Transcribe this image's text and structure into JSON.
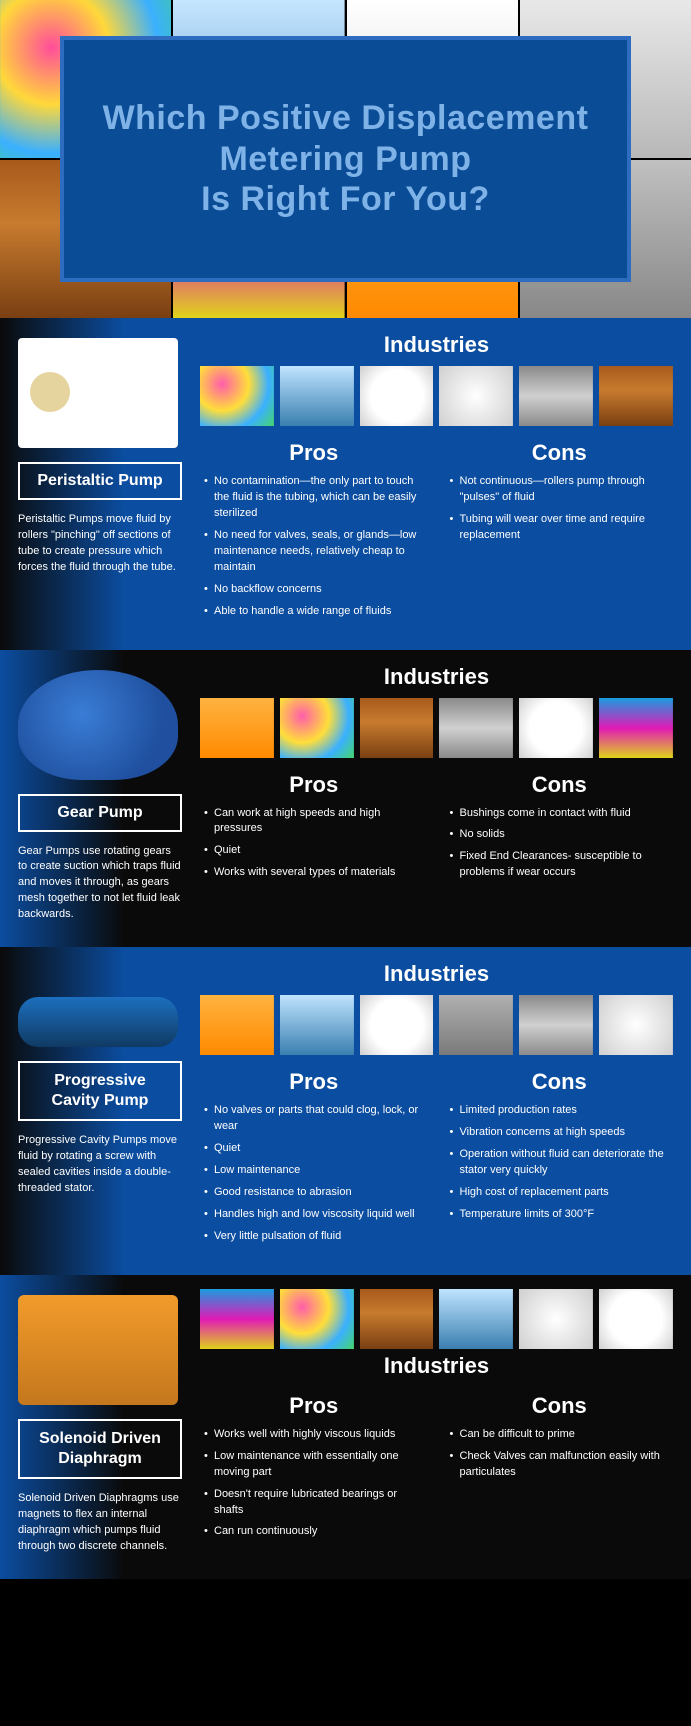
{
  "title_line1": "Which Positive Displacement",
  "title_line2": "Metering Pump",
  "title_line3": "Is Right For You?",
  "title_color": "#7fb3e8",
  "title_fontsize": 34,
  "box_border_color": "#2e6cbf",
  "box_bg_color": "#0a4d96",
  "labels": {
    "industries": "Industries",
    "pros": "Pros",
    "cons": "Cons"
  },
  "colors": {
    "blue_bg": "#0b4da0",
    "black_bg": "#0a0a0a",
    "text": "#ffffff"
  },
  "sections": [
    {
      "name": "Peristaltic Pump",
      "desc": "Peristaltic Pumps move fluid by rollers \"pinching\" off sections of tube to create pressure which forces the fluid through the tube.",
      "industries": [
        "paints",
        "water",
        "paper",
        "plastic",
        "metal",
        "bottles"
      ],
      "pros": [
        "No contamination—the only part to touch the fluid is the tubing, which can  be easily sterilized",
        "No need for valves, seals, or glands—low maintenance needs, relatively cheap to maintain",
        "No backflow concerns",
        "Able to handle a wide range of fluids"
      ],
      "cons": [
        "Not continuous—rollers pump through \"pulses\" of fluid",
        "Tubing will wear over time and require replacement"
      ]
    },
    {
      "name": "Gear Pump",
      "desc": "Gear Pumps use rotating gears to create suction which traps fluid and moves it through, as gears mesh together to not let fluid leak backwards.",
      "industries": [
        "orange",
        "paints",
        "bottles",
        "metal",
        "paper",
        "chem"
      ],
      "pros": [
        "Can work at high speeds and high pressures",
        "Quiet",
        "Works with several types of materials"
      ],
      "cons": [
        "Bushings come in contact with fluid",
        "No solids",
        "Fixed End Clearances- susceptible to problems if wear occurs"
      ]
    },
    {
      "name": "Progressive Cavity Pump",
      "desc": "Progressive Cavity Pumps move fluid by rotating a screw with sealed cavities inside a double-threaded stator.",
      "industries": [
        "orange",
        "water",
        "paper",
        "towers",
        "metal",
        "plastic"
      ],
      "pros": [
        "No valves or parts that could clog, lock, or wear",
        "Quiet",
        "Low maintenance",
        "Good resistance to abrasion",
        "Handles high and low viscosity liquid well",
        "Very little pulsation of fluid"
      ],
      "cons": [
        "Limited production rates",
        "Vibration concerns at high speeds",
        "Operation without fluid can deteriorate the stator very quickly",
        "High cost of replacement parts",
        "Temperature limits of 300°F"
      ]
    },
    {
      "name": "Solenoid Driven Diaphragm",
      "desc": "Solenoid Driven Diaphragms use magnets to flex an internal diaphragm which pumps fluid through two discrete channels.",
      "industries": [
        "chem",
        "paints",
        "bottles",
        "water",
        "plastic",
        "paper"
      ],
      "pros": [
        "Works well with highly viscous liquids",
        "Low maintenance with essentially one moving part",
        "Doesn't require lubricated bearings or shafts",
        "Can run continuously"
      ],
      "cons": [
        "Can be difficult to prime",
        "Check Valves can malfunction easily with particulates"
      ]
    }
  ]
}
